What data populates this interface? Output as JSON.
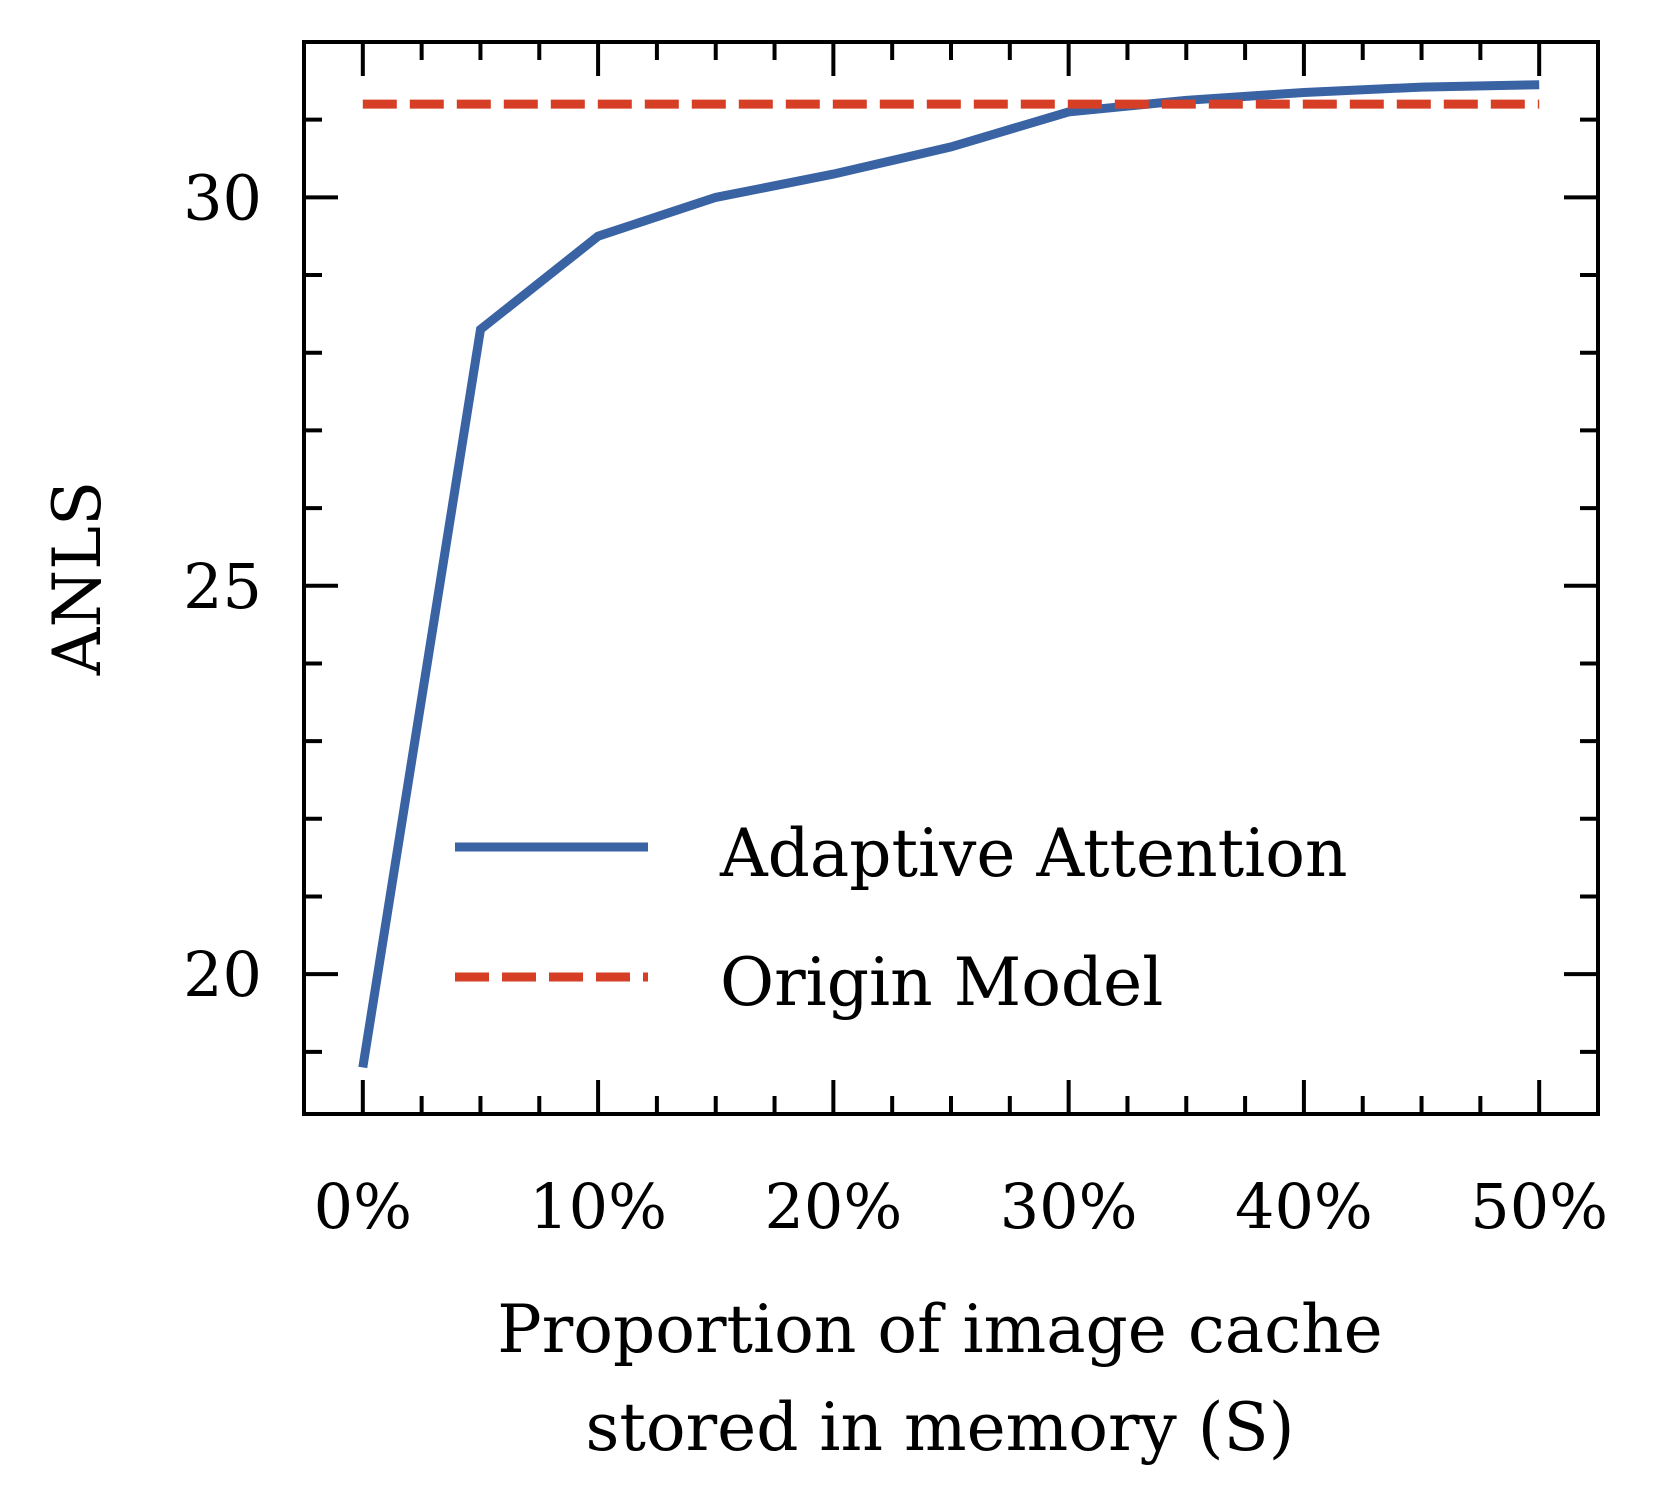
{
  "chart_data": {
    "type": "line",
    "title": "",
    "xlabel": [
      "Proportion of image cache",
      "stored in memory (S)"
    ],
    "ylabel": "ANLS",
    "xlim": [
      -2.5,
      52.5
    ],
    "ylim": [
      18.2,
      32.0
    ],
    "x_major_ticks": [
      0,
      10,
      20,
      30,
      40,
      50
    ],
    "x_tick_labels": [
      "0%",
      "10%",
      "20%",
      "30%",
      "40%",
      "50%"
    ],
    "x_minor_ticks": [
      2.5,
      5,
      7.5,
      12.5,
      15,
      17.5,
      22.5,
      25,
      27.5,
      32.5,
      35,
      37.5,
      42.5,
      45,
      47.5
    ],
    "y_major_ticks": [
      20,
      25,
      30
    ],
    "y_tick_labels": [
      "20",
      "25",
      "30"
    ],
    "y_minor_ticks": [
      19,
      21,
      22,
      23,
      24,
      26,
      27,
      28,
      29,
      31
    ],
    "grid": false,
    "legend_position": "lower-right",
    "series": [
      {
        "name": "Adaptive Attention",
        "style": "solid",
        "color": "#3a63a4",
        "x": [
          0,
          5,
          10,
          15,
          20,
          25,
          30,
          35,
          40,
          45,
          50
        ],
        "y": [
          18.8,
          28.3,
          29.5,
          30.0,
          30.3,
          30.65,
          31.1,
          31.25,
          31.35,
          31.42,
          31.45
        ]
      },
      {
        "name": "Origin Model",
        "style": "dashed",
        "color": "#d63f25",
        "x": [
          0,
          50
        ],
        "y": [
          31.2,
          31.2
        ]
      }
    ]
  }
}
